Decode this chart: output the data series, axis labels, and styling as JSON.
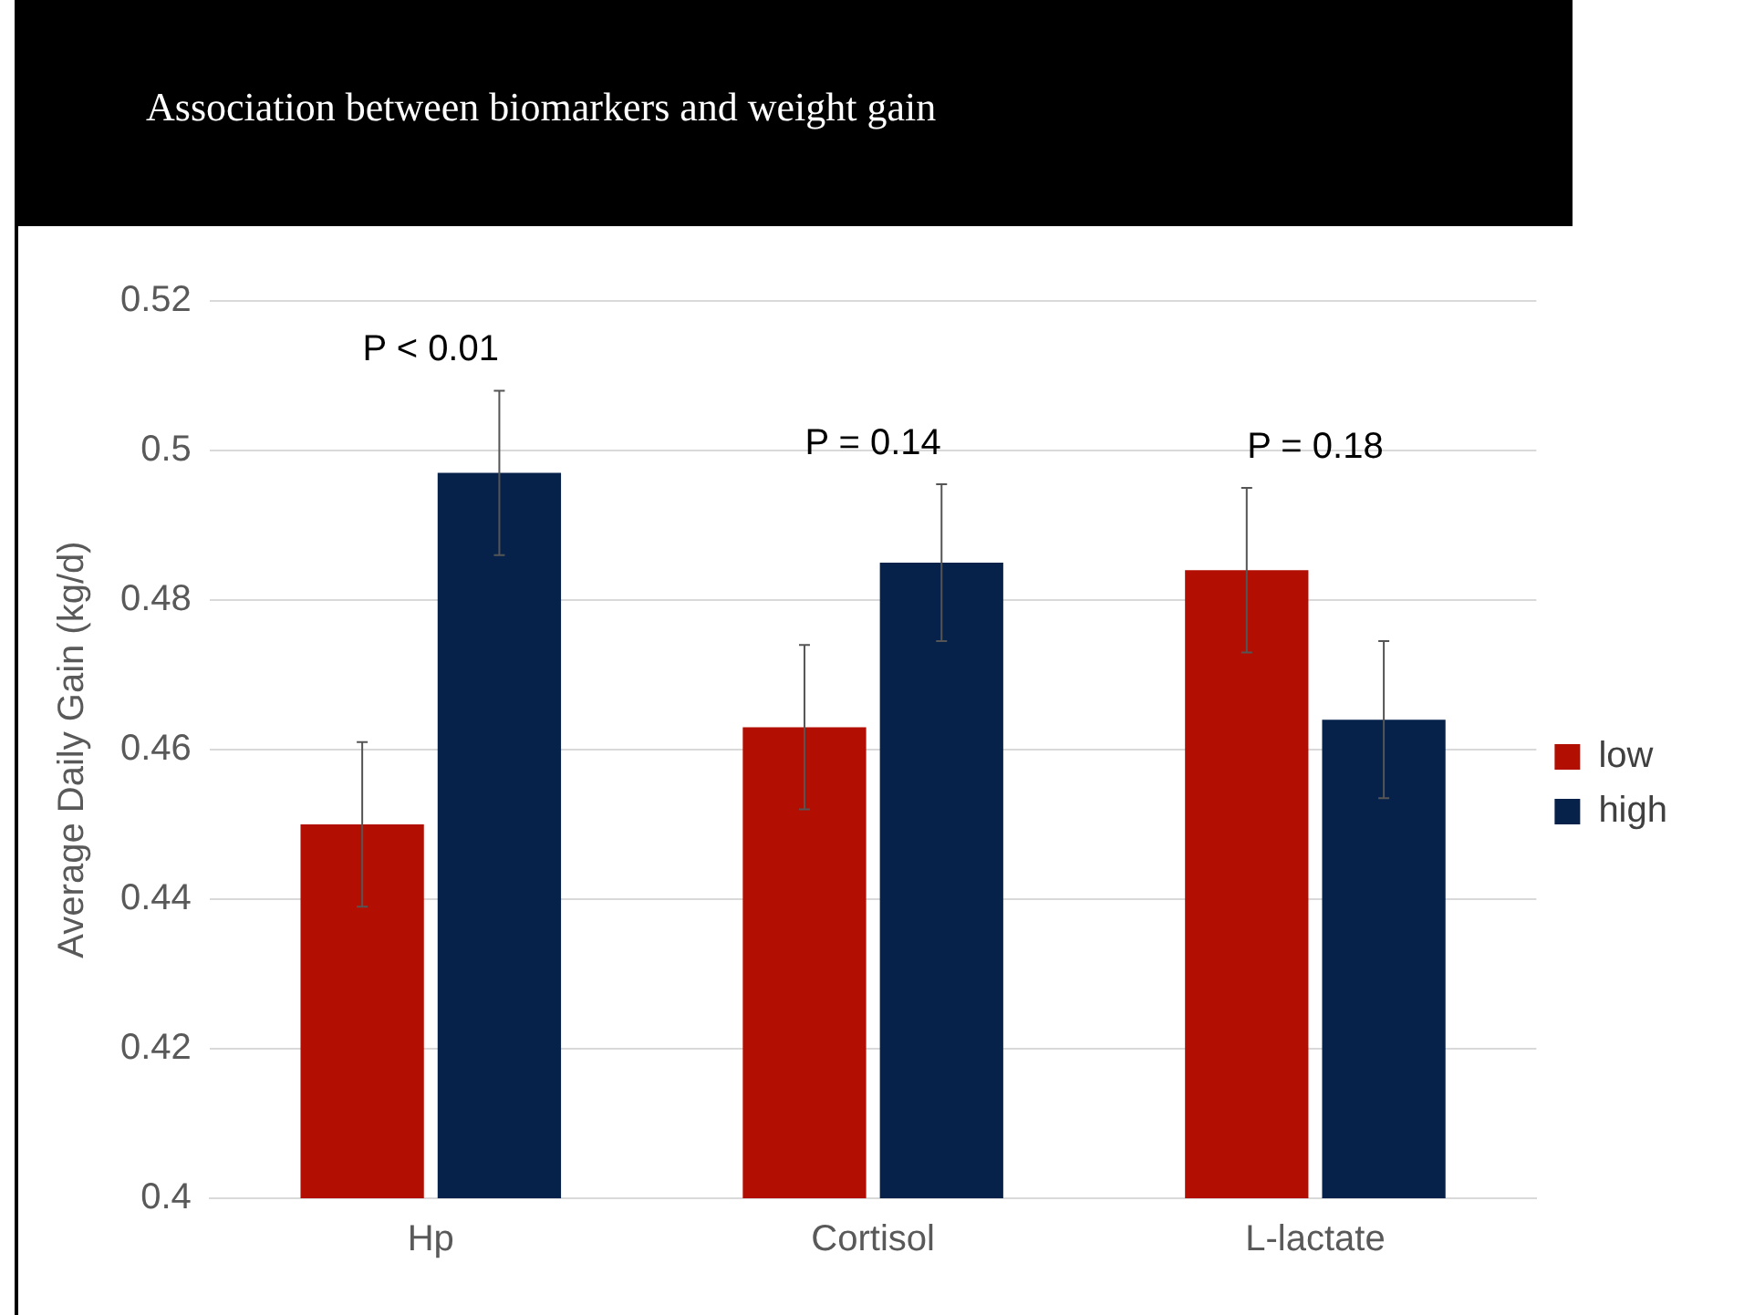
{
  "chart_data": {
    "type": "bar",
    "title": "Association between biomarkers and weight gain",
    "ylabel": "Average Daily Gain (kg/d)",
    "categories": [
      "Hp",
      "Cortisol",
      "L-lactate"
    ],
    "series": [
      {
        "name": "low",
        "color": "#b20e02",
        "values": [
          0.45,
          0.463,
          0.484
        ],
        "errors": [
          0.011,
          0.011,
          0.011
        ]
      },
      {
        "name": "high",
        "color": "#06214a",
        "values": [
          0.497,
          0.485,
          0.464
        ],
        "errors": [
          0.011,
          0.0105,
          0.0105
        ]
      }
    ],
    "ylim": [
      0.4,
      0.52
    ],
    "yticks": [
      0.4,
      0.42,
      0.44,
      0.46,
      0.48,
      0.5,
      0.52
    ],
    "grid": "y",
    "legend": "right",
    "annotations": [
      "P < 0.01",
      "P = 0.14",
      "P = 0.18"
    ]
  }
}
